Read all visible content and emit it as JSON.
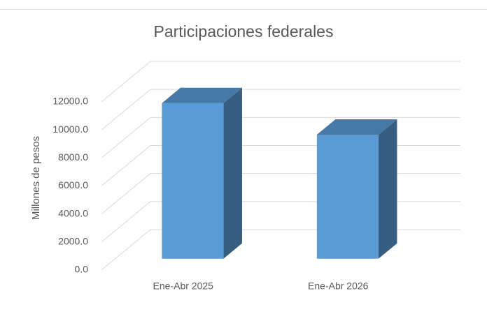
{
  "chart_data": {
    "type": "bar3d",
    "title": "Participaciones federales",
    "y_axis_label": "Millones de pesos",
    "categories": [
      "Ene-Abr 2025",
      "Ene-Abr 2026"
    ],
    "values": [
      11100,
      8850
    ],
    "color": "#5b9bd5",
    "ylim": [
      0,
      12000
    ],
    "yticks": [
      {
        "value": 0,
        "label": "0.0"
      },
      {
        "value": 2000,
        "label": "2000.0"
      },
      {
        "value": 4000,
        "label": "4000.0"
      },
      {
        "value": 6000,
        "label": "6000.0"
      },
      {
        "value": 8000,
        "label": "8000.0"
      },
      {
        "value": 10000,
        "label": "10000.0"
      },
      {
        "value": 12000,
        "label": "12000.0"
      }
    ],
    "grid": true
  }
}
